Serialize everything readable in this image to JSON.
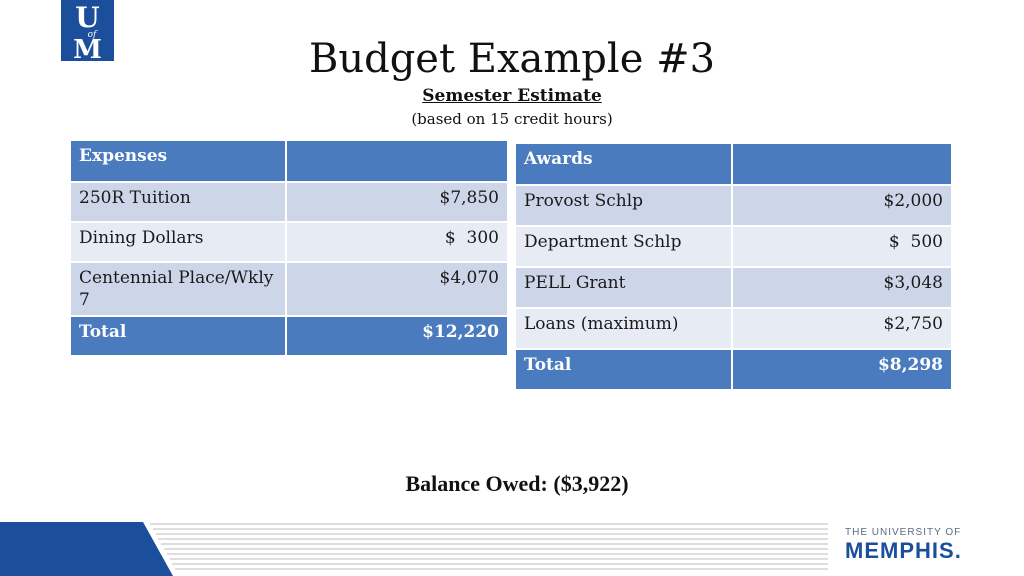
{
  "logo": {
    "top_letter": "U",
    "middle_text": "of",
    "bottom_letter": "M",
    "color": "#1b4f9c"
  },
  "slide": {
    "title": "Budget Example #3",
    "subtitle": "Semester Estimate",
    "note": "(based on 15 credit hours)"
  },
  "expenses": {
    "header": "Expenses",
    "rows": [
      {
        "label": "250R Tuition",
        "amount": "$7,850"
      },
      {
        "label": "Dining Dollars",
        "amount": "$  300"
      },
      {
        "label": "Centennial Place/Wkly 7",
        "amount": "$4,070"
      }
    ],
    "total_label": "Total",
    "total_amount": "$12,220"
  },
  "awards": {
    "header": "Awards",
    "rows": [
      {
        "label": "Provost Schlp",
        "amount": "$2,000"
      },
      {
        "label": "Department Schlp",
        "amount": "$  500"
      },
      {
        "label": "PELL Grant",
        "amount": "$3,048"
      },
      {
        "label": "Loans (maximum)",
        "amount": "$2,750"
      }
    ],
    "total_label": "Total",
    "total_amount": "$8,298"
  },
  "balance": "Balance Owed: ($3,922)",
  "footer": {
    "small_text": "THE UNIVERSITY OF",
    "big_text": "MEMPHIS",
    "mark": "."
  },
  "colors": {
    "header_blue": "#4a7bbf",
    "row_light": "#e7ebf4",
    "row_mid": "#cdd6e8",
    "brand_blue": "#1b4f9c"
  }
}
